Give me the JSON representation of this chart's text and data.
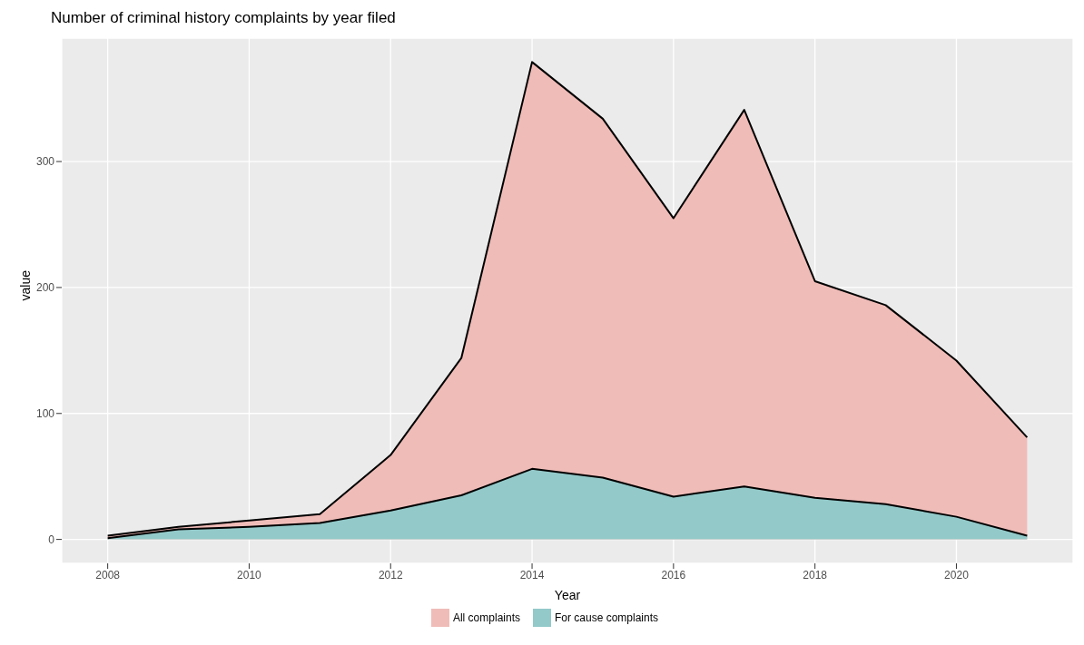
{
  "chart_data": {
    "type": "area",
    "title": "Number of criminal history complaints by year filed",
    "xlabel": "Year",
    "ylabel": "value",
    "x": [
      2008,
      2009,
      2010,
      2011,
      2012,
      2013,
      2014,
      2015,
      2016,
      2017,
      2018,
      2019,
      2020,
      2021
    ],
    "series": [
      {
        "name": "All complaints",
        "color": "#f0bcb8",
        "values": [
          3,
          10,
          15,
          20,
          67,
          144,
          379,
          334,
          255,
          341,
          205,
          186,
          142,
          81
        ]
      },
      {
        "name": "For cause complaints",
        "color": "#93c9c9",
        "values": [
          1,
          8,
          10,
          13,
          23,
          35,
          56,
          49,
          34,
          42,
          33,
          28,
          18,
          3
        ]
      }
    ],
    "xlim": [
      2007.35,
      2021.65
    ],
    "xticks": [
      2008,
      2010,
      2012,
      2014,
      2016,
      2018,
      2020
    ],
    "ylim": [
      -19,
      398
    ],
    "yticks": [
      0,
      100,
      200,
      300
    ],
    "grid": true,
    "legend": "bottom"
  }
}
